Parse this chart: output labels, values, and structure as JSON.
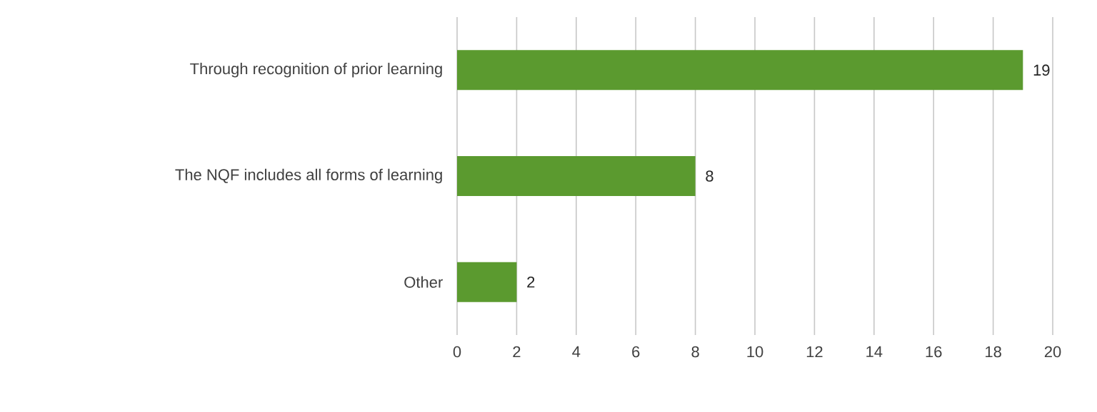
{
  "chart_data": {
    "type": "bar",
    "orientation": "horizontal",
    "categories": [
      "Through recognition of prior learning",
      "The NQF includes all forms of learning",
      "Other"
    ],
    "values": [
      19,
      8,
      2
    ],
    "color": "#5b9a2f",
    "xlim": [
      0,
      20
    ],
    "xticks": [
      0,
      2,
      4,
      6,
      8,
      10,
      12,
      14,
      16,
      18,
      20
    ],
    "grid": "x",
    "data_labels": true
  }
}
